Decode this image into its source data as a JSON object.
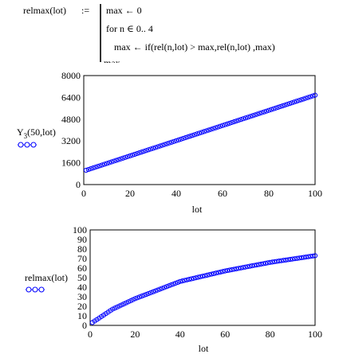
{
  "program": {
    "name": "relmax(lot)",
    "define_op": ":=",
    "lines": [
      "max ← 0",
      "for  n ∈ 0.. 4",
      "max ← if(rel(n,lot) > max,rel(n,lot) ,max)",
      "max"
    ]
  },
  "chart_data": [
    {
      "type": "scatter",
      "trace_label": {
        "main": "Y",
        "sub": "3",
        "args": "(50,lot)"
      },
      "xlabel": "lot",
      "ylabel": "",
      "xlim": [
        0,
        100
      ],
      "ylim": [
        0,
        8000
      ],
      "x_ticks": [
        "0",
        "20",
        "40",
        "60",
        "80",
        "100"
      ],
      "y_ticks": [
        "0",
        "1600",
        "3200",
        "4800",
        "6400",
        "8000"
      ],
      "marker_color": "#0000ff",
      "grid": false,
      "series": [
        {
          "x_start": 1,
          "x_end": 100,
          "x_step": 1,
          "y_start": 1050,
          "y_end": 6560
        }
      ]
    },
    {
      "type": "scatter",
      "trace_label": {
        "main": "relmax(lot)",
        "sub": "",
        "args": ""
      },
      "xlabel": "lot",
      "ylabel": "",
      "xlim": [
        0,
        100
      ],
      "ylim": [
        0,
        100
      ],
      "x_ticks": [
        "0",
        "20",
        "40",
        "60",
        "80",
        "100"
      ],
      "y_ticks": [
        "0",
        "10",
        "20",
        "30",
        "40",
        "50",
        "60",
        "70",
        "80",
        "90",
        "100"
      ],
      "marker_color": "#0000ff",
      "grid": false,
      "series": [
        {
          "x_start": 1,
          "x_end": 100,
          "x_step": 1,
          "curve": "saturating",
          "points": [
            [
              1,
              3
            ],
            [
              10,
              17
            ],
            [
              20,
              28
            ],
            [
              40,
              46
            ],
            [
              60,
              57
            ],
            [
              80,
              66
            ],
            [
              100,
              73
            ]
          ]
        }
      ]
    }
  ]
}
